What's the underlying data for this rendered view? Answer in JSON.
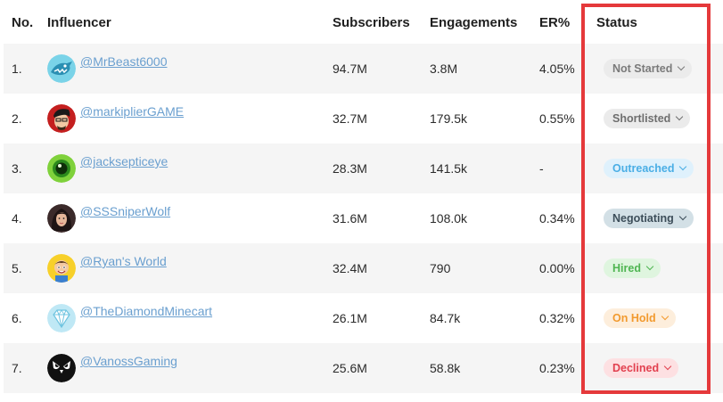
{
  "headers": {
    "no": "No.",
    "influencer": "Influencer",
    "subscribers": "Subscribers",
    "engagements": "Engagements",
    "er": "ER%",
    "status": "Status"
  },
  "rows": [
    {
      "no": "1.",
      "handle": "@MrBeast6000",
      "subscribers": "94.7M",
      "engagements": "3.8M",
      "er": "4.05%",
      "status": "Not Started",
      "avatar_icon": "shark-icon"
    },
    {
      "no": "2.",
      "handle": "@markiplierGAME",
      "subscribers": "32.7M",
      "engagements": "179.5k",
      "er": "0.55%",
      "status": "Shortlisted",
      "avatar_icon": "face-icon"
    },
    {
      "no": "3.",
      "handle": "@jacksepticeye",
      "subscribers": "28.3M",
      "engagements": "141.5k",
      "er": "-",
      "status": "Outreached",
      "avatar_icon": "eye-icon"
    },
    {
      "no": "4.",
      "handle": "@SSSniperWolf",
      "subscribers": "31.6M",
      "engagements": "108.0k",
      "er": "0.34%",
      "status": "Negotiating",
      "avatar_icon": "portrait-icon"
    },
    {
      "no": "5.",
      "handle": "@Ryan's World",
      "subscribers": "32.4M",
      "engagements": "790",
      "er": "0.00%",
      "status": "Hired",
      "avatar_icon": "cartoon-icon"
    },
    {
      "no": "6.",
      "handle": "@TheDiamondMinecart",
      "subscribers": "26.1M",
      "engagements": "84.7k",
      "er": "0.32%",
      "status": "On Hold",
      "avatar_icon": "diamond-icon"
    },
    {
      "no": "7.",
      "handle": "@VanossGaming",
      "subscribers": "25.6M",
      "engagements": "58.8k",
      "er": "0.23%",
      "status": "Declined",
      "avatar_icon": "owl-icon"
    }
  ],
  "status_colors": {
    "Not Started": {
      "bg": "#ebebeb",
      "fg": "#7a7a7a"
    },
    "Shortlisted": {
      "bg": "#ebebeb",
      "fg": "#6e6e6e"
    },
    "Outreached": {
      "bg": "#dff1fc",
      "fg": "#4aaee5"
    },
    "Negotiating": {
      "bg": "#d3e0e6",
      "fg": "#3d4e5a"
    },
    "Hired": {
      "bg": "#dff5df",
      "fg": "#4fb552"
    },
    "On Hold": {
      "bg": "#fdeedc",
      "fg": "#f29a2e"
    },
    "Declined": {
      "bg": "#fde0e2",
      "fg": "#e2404f"
    }
  },
  "highlight_color": "#e5393b"
}
